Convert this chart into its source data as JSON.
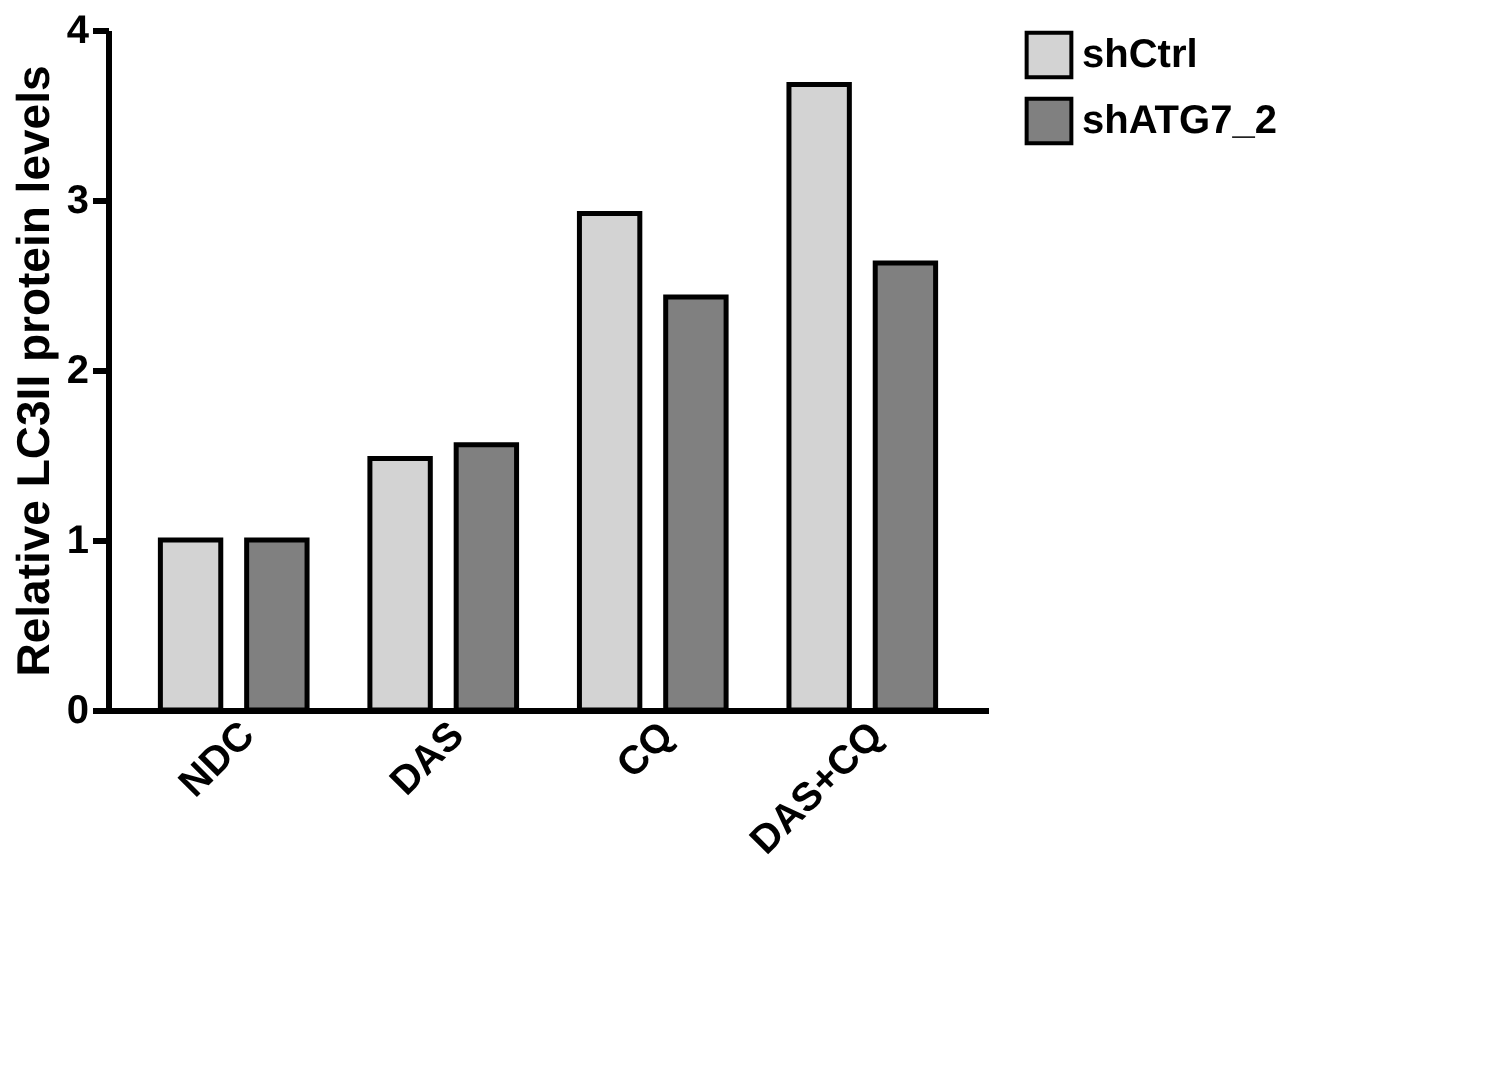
{
  "chart_data": {
    "type": "bar",
    "ylabel": "Relative LC3II protein levels",
    "categories": [
      "NDC",
      "DAS",
      "CQ",
      "DAS+CQ"
    ],
    "series": [
      {
        "name": "shCtrl",
        "color": "#d3d3d3",
        "values": [
          1.0,
          1.48,
          2.92,
          3.68
        ]
      },
      {
        "name": "shATG7_2",
        "color": "#808080",
        "values": [
          1.0,
          1.56,
          2.43,
          2.63
        ]
      }
    ],
    "ylim": [
      0,
      4
    ],
    "yticks": [
      0,
      1,
      2,
      3,
      4
    ],
    "grid": false,
    "legend": "top right"
  }
}
